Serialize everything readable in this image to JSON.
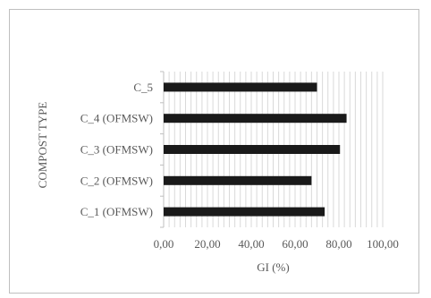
{
  "chart_data": {
    "type": "bar",
    "orientation": "horizontal",
    "categories": [
      "C_1 (OFMSW)",
      "C_2 (OFMSW)",
      "C_3 (OFMSW)",
      "C_4 (OFMSW)",
      "C_5"
    ],
    "values": [
      73.5,
      67.5,
      80.5,
      83.5,
      70.0
    ],
    "xlabel": "GI (%)",
    "ylabel": "COMPOST TYPE",
    "xlim": [
      0,
      100
    ],
    "xticks": [
      "0,00",
      "20,00",
      "40,00",
      "60,00",
      "80,00",
      "100,00"
    ],
    "grid": true,
    "bar_color": "#1a1a1a"
  }
}
